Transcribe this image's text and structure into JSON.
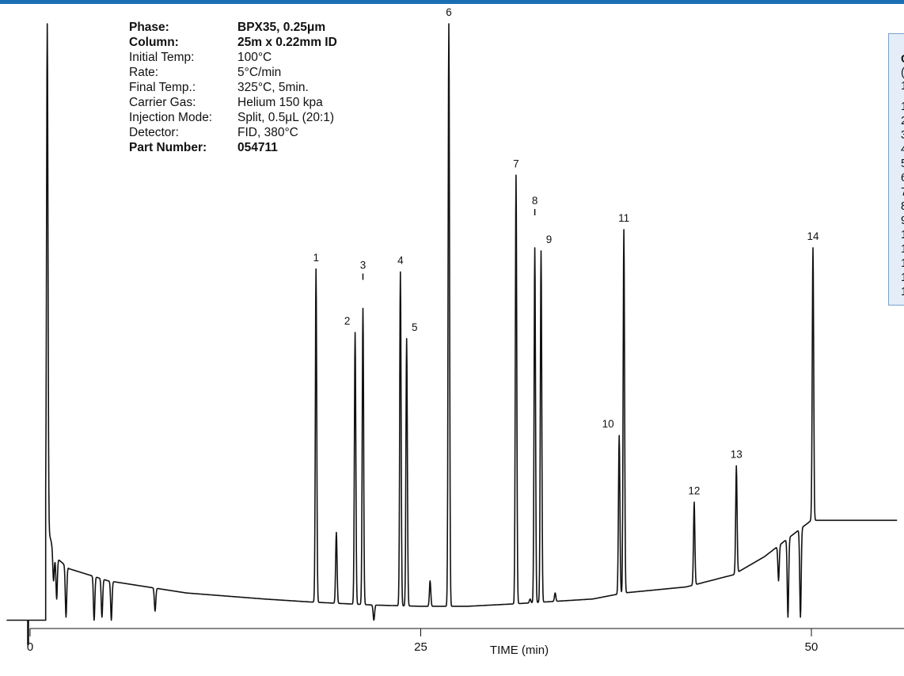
{
  "params": [
    {
      "label": "Phase:",
      "value": "BPX35, 0.25μm",
      "bold": true
    },
    {
      "label": "Column:",
      "value": "25m x 0.22mm ID",
      "bold": true
    },
    {
      "label": "Initial Temp:",
      "value": "100°C",
      "bold": false
    },
    {
      "label": "Rate:",
      "value": "5°C/min",
      "bold": false
    },
    {
      "label": "Final Temp.:",
      "value": "325°C, 5min.",
      "bold": false
    },
    {
      "label": "Carrier Gas:",
      "value": "Helium 150 kpa",
      "bold": false
    },
    {
      "label": "Injection Mode:",
      "value": "Split, 0.5μL (20:1)",
      "bold": false
    },
    {
      "label": "Detector:",
      "value": "FID, 380°C",
      "bold": false
    },
    {
      "label": "Part Number:",
      "value": "054711",
      "bold": true
    }
  ],
  "legend_fragments": [
    "C",
    "(",
    "1",
    "1",
    "2",
    "3",
    "4",
    "5",
    "6",
    "7",
    "8",
    "9",
    "1",
    "1",
    "1",
    "1",
    "1"
  ],
  "colors": {
    "accent_bar": "#1a6fb4",
    "legend_bg": "#e4edf8",
    "legend_border": "#7aa3cf",
    "trace": "#111111"
  },
  "chart_data": {
    "type": "line",
    "xlabel": "TIME (min)",
    "ylabel": "",
    "x_ticks": [
      0,
      25,
      50
    ],
    "xlim": [
      -1.5,
      56
    ],
    "ylim": [
      0,
      100
    ],
    "baseline": [
      [
        1.2,
        16
      ],
      [
        1.6,
        12
      ],
      [
        2.5,
        10
      ],
      [
        5,
        8
      ],
      [
        10,
        6
      ],
      [
        15,
        5
      ],
      [
        18,
        4.5
      ],
      [
        22,
        4
      ],
      [
        25,
        3.8
      ],
      [
        28,
        3.8
      ],
      [
        31,
        4.2
      ],
      [
        36,
        5
      ],
      [
        38,
        6
      ],
      [
        42,
        7
      ],
      [
        45,
        9
      ],
      [
        47,
        12
      ],
      [
        49,
        16
      ],
      [
        50,
        18
      ],
      [
        55.5,
        18
      ]
    ],
    "peaks": [
      {
        "label": "1",
        "time": 18.3,
        "height": 59.5
      },
      {
        "label": "2",
        "time": 20.8,
        "height": 49.0
      },
      {
        "label": "3",
        "time": 21.3,
        "height": 53.0
      },
      {
        "label": "4",
        "time": 23.7,
        "height": 59.0
      },
      {
        "label": "5",
        "time": 24.1,
        "height": 48.0
      },
      {
        "label": "6",
        "time": 26.8,
        "height": 100.0
      },
      {
        "label": "7",
        "time": 31.1,
        "height": 75.0
      },
      {
        "label": "8",
        "time": 32.3,
        "height": 63.0
      },
      {
        "label": "9",
        "time": 32.7,
        "height": 62.5
      },
      {
        "label": "10",
        "time": 37.7,
        "height": 32.0
      },
      {
        "label": "11",
        "time": 38.0,
        "height": 66.0
      },
      {
        "label": "12",
        "time": 42.5,
        "height": 21.0
      },
      {
        "label": "13",
        "time": 45.2,
        "height": 27.0
      },
      {
        "label": "14",
        "time": 50.1,
        "height": 63.0
      }
    ],
    "minor_peaks": [
      {
        "time": 1.1,
        "height": 100
      },
      {
        "time": 1.5,
        "height": 8
      },
      {
        "time": 1.7,
        "height": 5
      },
      {
        "time": 2.3,
        "height": 2
      },
      {
        "time": 4.1,
        "height": 1.5
      },
      {
        "time": 4.6,
        "height": 2
      },
      {
        "time": 5.2,
        "height": 1.5
      },
      {
        "time": 8.0,
        "height": 3
      },
      {
        "time": 19.6,
        "height": 16
      },
      {
        "time": 22.0,
        "height": 1.5
      },
      {
        "time": 25.6,
        "height": 8
      },
      {
        "time": 32.0,
        "height": 5
      },
      {
        "time": 33.6,
        "height": 6
      },
      {
        "time": 47.9,
        "height": 8
      },
      {
        "time": 48.5,
        "height": 2
      },
      {
        "time": 49.3,
        "height": 2
      }
    ]
  }
}
